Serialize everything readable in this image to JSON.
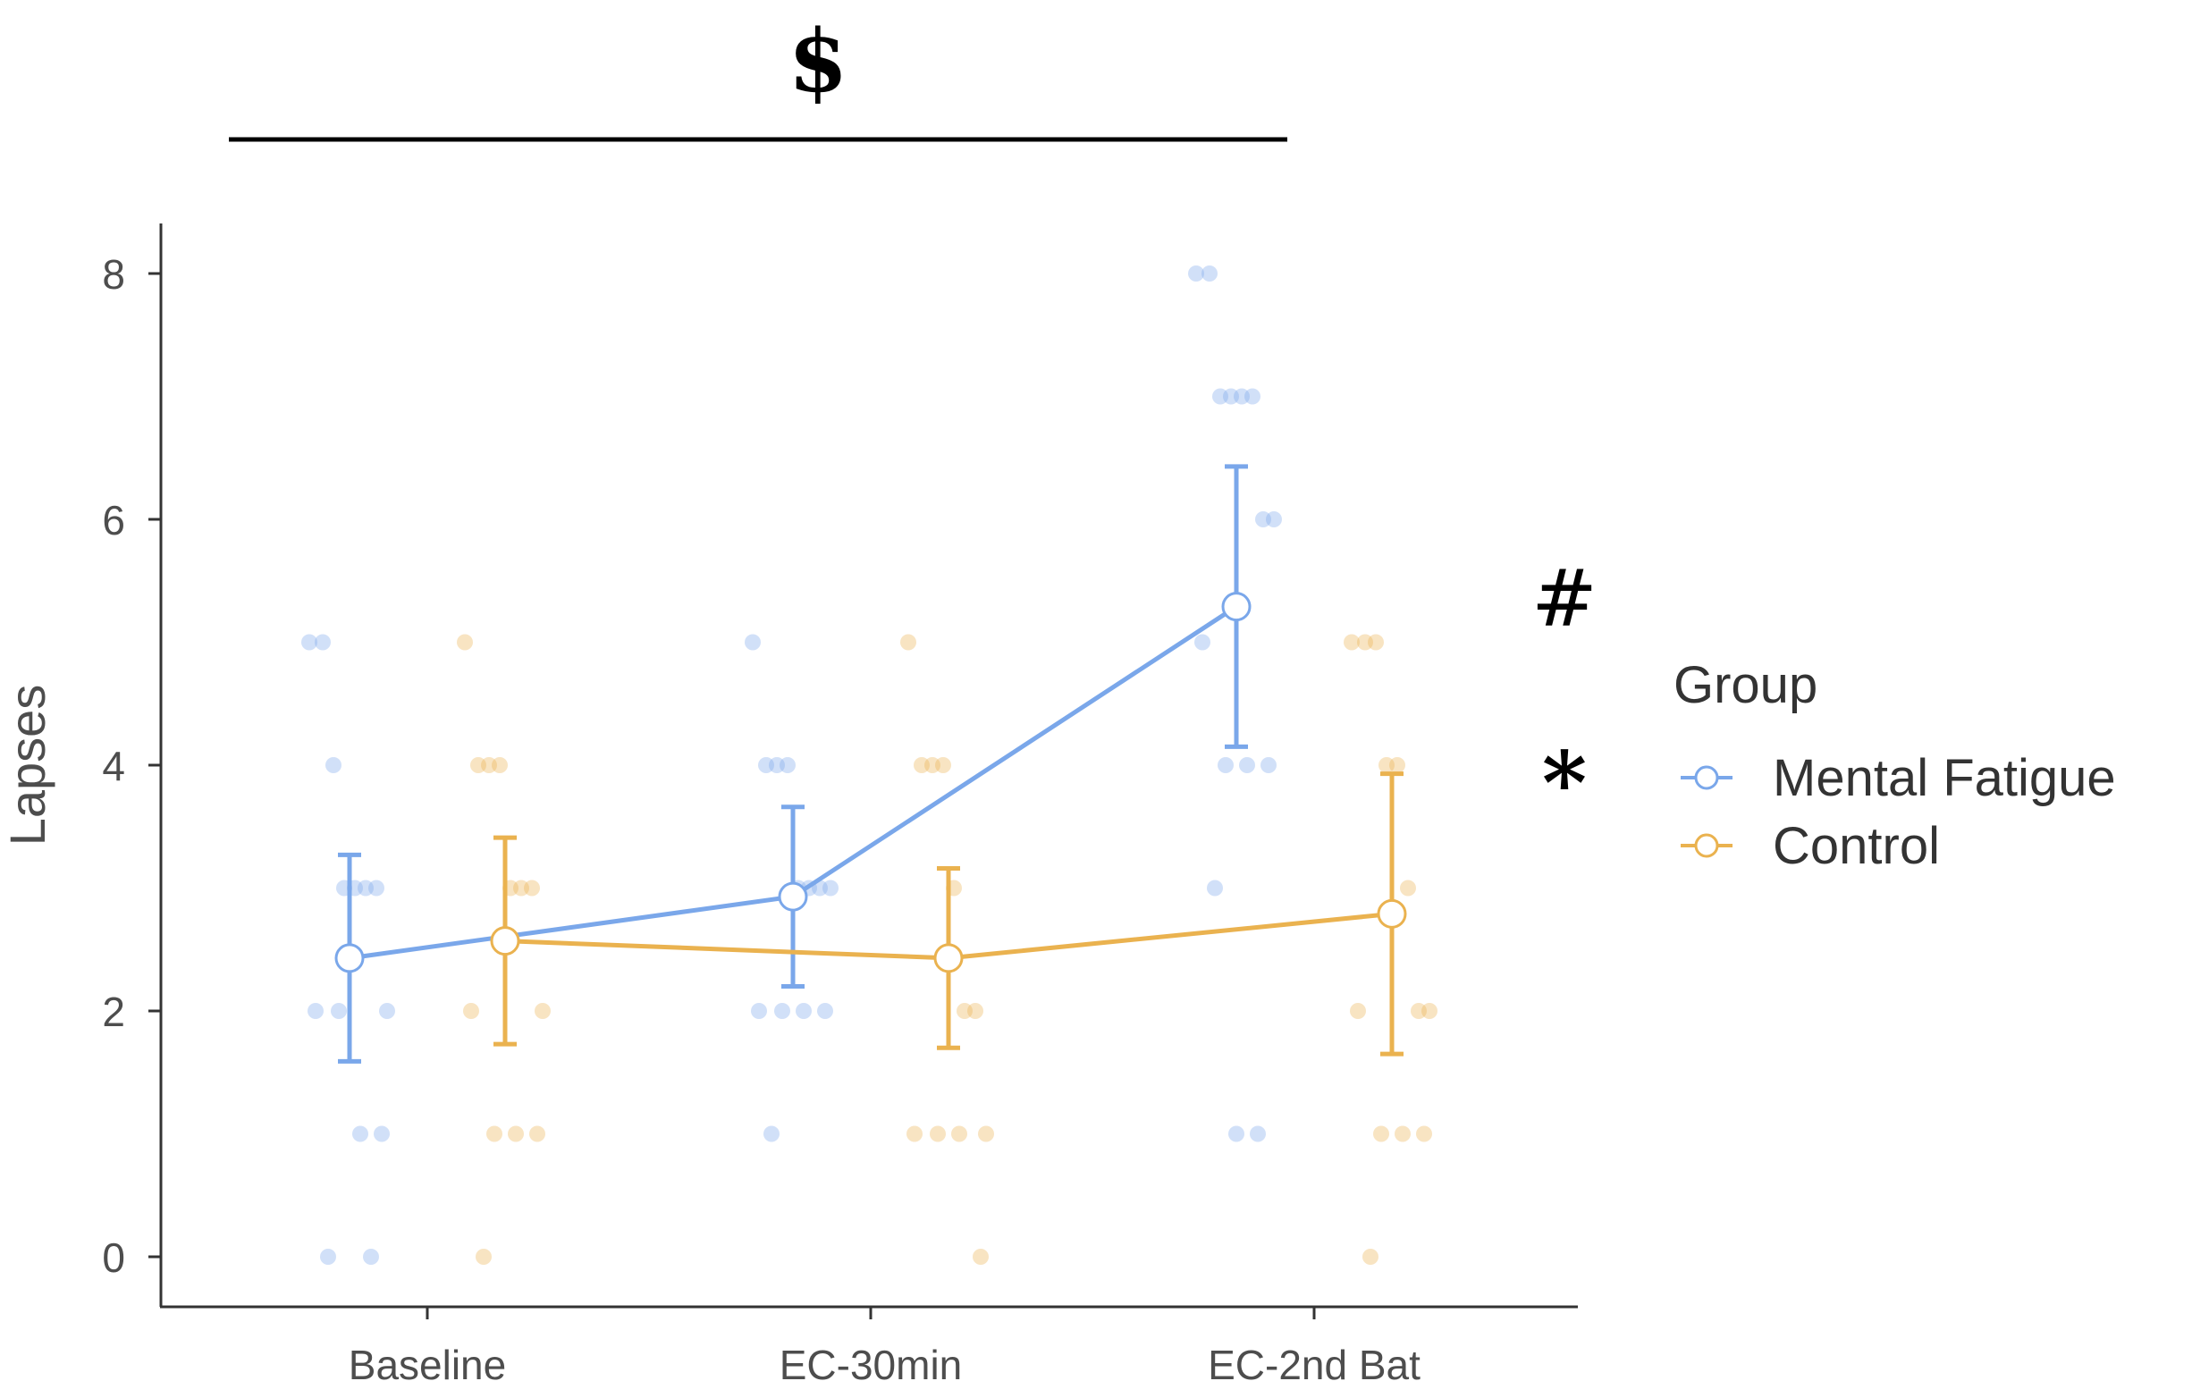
{
  "chart_data": {
    "type": "line",
    "title": "",
    "xlabel": "",
    "ylabel": "Lapses",
    "ylim": [
      -0.4,
      8.4
    ],
    "yticks": [
      0,
      2,
      4,
      6,
      8
    ],
    "categories": [
      "Baseline",
      "EC-30min",
      "EC-2nd Bat"
    ],
    "legend": {
      "title": "Group",
      "position": "right"
    },
    "series": [
      {
        "name": "Mental Fatigue",
        "color": "#7aa7ea",
        "means": [
          2.43,
          2.93,
          5.29
        ],
        "error_low": [
          1.59,
          2.2,
          4.15
        ],
        "error_high": [
          3.27,
          3.66,
          6.43
        ],
        "points": [
          [
            5,
            5,
            4,
            3,
            3,
            3,
            3,
            2,
            2,
            2,
            1,
            1,
            0,
            0
          ],
          [
            5,
            4,
            4,
            4,
            3,
            3,
            3,
            3,
            2,
            2,
            2,
            2,
            1
          ],
          [
            8,
            8,
            7,
            7,
            7,
            7,
            6,
            6,
            5,
            4,
            4,
            4,
            3,
            1,
            1
          ]
        ]
      },
      {
        "name": "Control",
        "color": "#eab24f",
        "means": [
          2.57,
          2.43,
          2.79
        ],
        "error_low": [
          1.73,
          1.7,
          1.65
        ],
        "error_high": [
          3.41,
          3.16,
          3.93
        ],
        "points": [
          [
            5,
            4,
            4,
            4,
            3,
            3,
            3,
            2,
            2,
            1,
            1,
            1,
            0
          ],
          [
            5,
            4,
            4,
            4,
            3,
            2,
            2,
            1,
            1,
            1,
            1,
            0
          ],
          [
            5,
            5,
            5,
            4,
            4,
            3,
            2,
            2,
            2,
            1,
            1,
            1,
            0
          ]
        ]
      }
    ],
    "annotations": [
      {
        "symbol": "$",
        "meaning": "bracket spanning Baseline to EC-2nd Bat"
      },
      {
        "symbol": "#",
        "meaning": "marker right of EC-2nd Bat"
      },
      {
        "symbol": "*",
        "meaning": "marker right of EC-2nd Bat"
      }
    ]
  }
}
